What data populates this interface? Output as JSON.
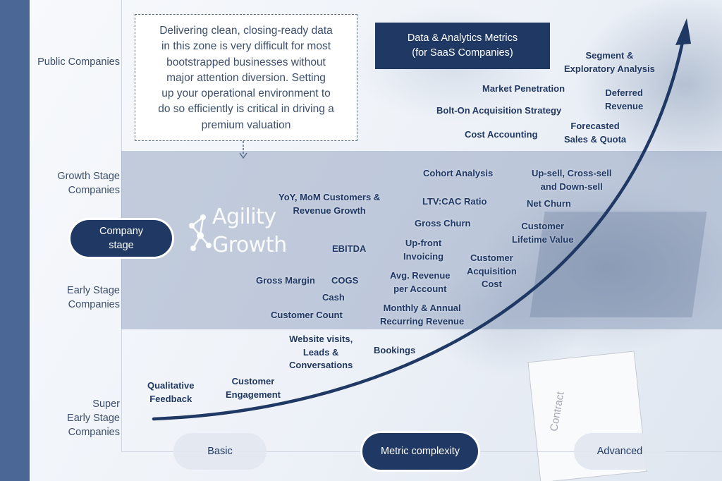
{
  "colors": {
    "navy": "#1f3864",
    "side_bar": "#4a6796",
    "band": "#7086aa"
  },
  "stages": [
    "Public Companies",
    "Growth Stage Companies",
    "Early Stage Companies",
    "Super Early Stage Companies"
  ],
  "stage_lines": {
    "public": "Public Companies",
    "growth_1": "Growth Stage",
    "growth_2": "Companies",
    "early_1": "Early Stage",
    "early_2": "Companies",
    "super_1": "Super",
    "super_2": "Early Stage",
    "super_3": "Companies"
  },
  "y_pill": {
    "line1": "Company",
    "line2": "stage"
  },
  "x_pills": {
    "basic": "Basic",
    "center": "Metric complexity",
    "advanced": "Advanced"
  },
  "callout": {
    "lines": [
      "Delivering clean, closing-ready data",
      "in this zone is very difficult for most",
      "bootstrapped businesses without",
      "major attention diversion.  Setting",
      "up your operational environment to",
      "do so efficiently is critical in driving a",
      "premium valuation"
    ]
  },
  "title": {
    "line1": "Data & Analytics Metrics",
    "line2": "(for SaaS Companies)"
  },
  "logo": {
    "word1": "Agility",
    "word2": "Growth",
    "icon": "molecule-network-icon"
  },
  "metrics": {
    "segment": [
      "Segment &",
      "Exploratory Analysis"
    ],
    "market_penetration": "Market Penetration",
    "deferred": [
      "Deferred",
      "Revenue"
    ],
    "bolt_on": "Bolt-On Acquisition Strategy",
    "cost_accounting": "Cost Accounting",
    "forecasted": [
      "Forecasted",
      "Sales & Quota"
    ],
    "cohort": "Cohort Analysis",
    "upsell": [
      "Up-sell, Cross-sell",
      "and Down-sell"
    ],
    "yoy": [
      "YoY, MoM Customers &",
      "Revenue Growth"
    ],
    "ltv_cac": "LTV:CAC Ratio",
    "net_churn": "Net Churn",
    "gross_churn": "Gross Churn",
    "clv": [
      "Customer",
      "Lifetime Value"
    ],
    "ebitda": "EBITDA",
    "upfront": [
      "Up-front",
      "Invoicing"
    ],
    "cac": [
      "Customer",
      "Acquisition",
      "Cost"
    ],
    "gross_margin": "Gross Margin",
    "cogs": "COGS",
    "arpa": [
      "Avg. Revenue",
      "per Account"
    ],
    "cash": "Cash",
    "mrr_arr": [
      "Monthly & Annual",
      "Recurring Revenue"
    ],
    "customer_count": "Customer Count",
    "website": [
      "Website visits,",
      "Leads &",
      "Conversations"
    ],
    "bookings": "Bookings",
    "engagement": [
      "Customer",
      "Engagement"
    ],
    "qualitative": [
      "Qualitative",
      "Feedback"
    ]
  },
  "background_text": "Contract"
}
